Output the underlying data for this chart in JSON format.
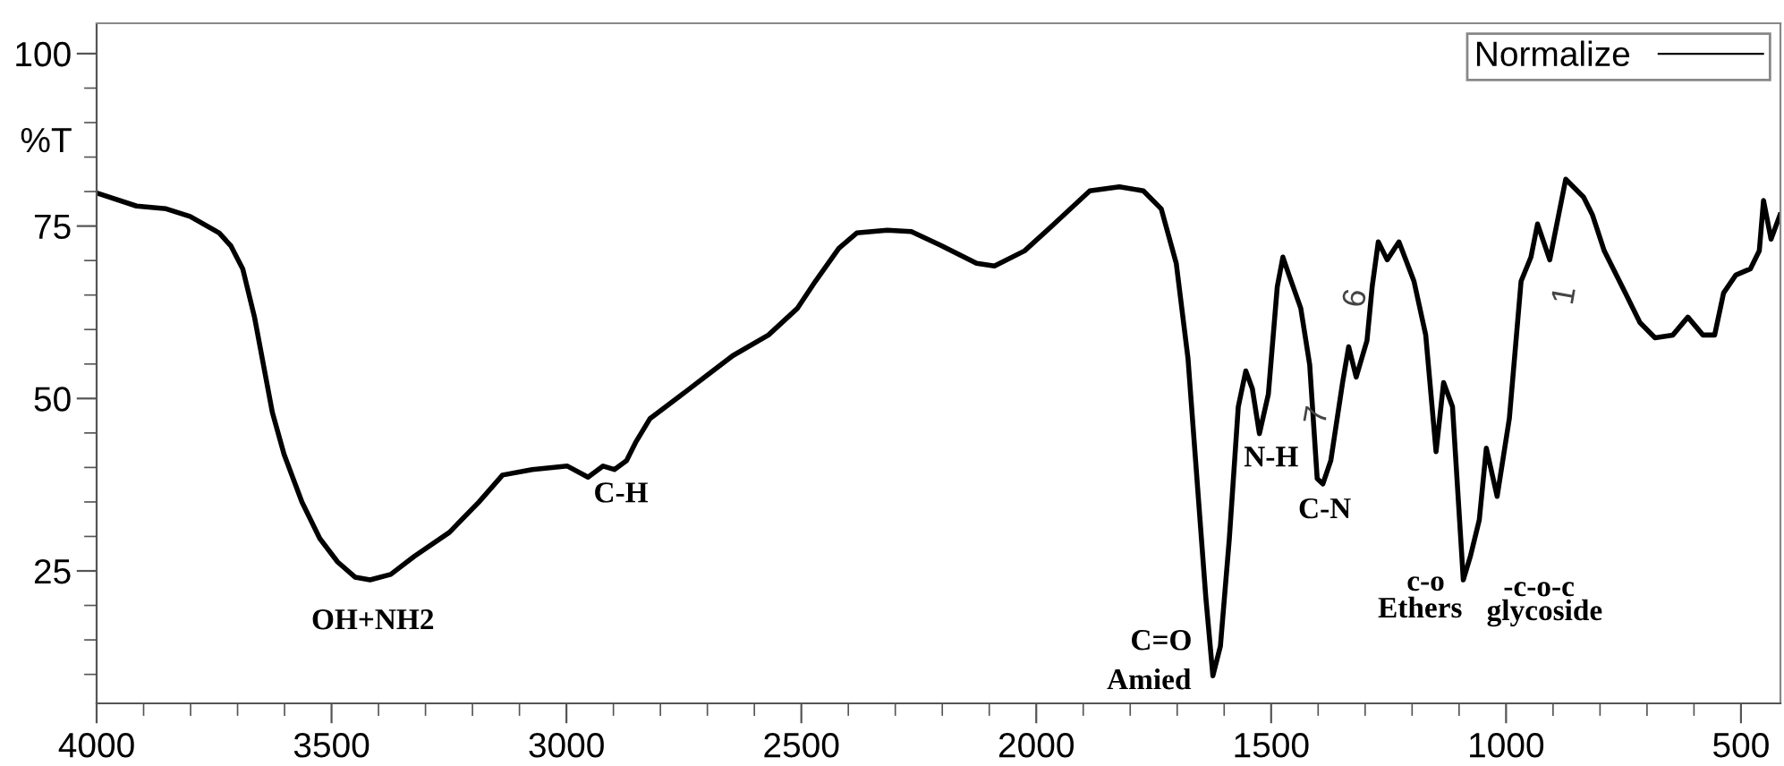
{
  "chart_data": {
    "type": "line",
    "ylabel": "%T",
    "legend": "top right",
    "grid": false,
    "marker": "none",
    "line_style": "solid",
    "xlim": [
      4000,
      416
    ],
    "ylim": [
      5.8,
      104.4
    ],
    "xticks": [
      4000,
      {
        "value": 3900,
        "label": null
      },
      {
        "value": 3800,
        "label": null
      },
      {
        "value": 3700,
        "label": null
      },
      {
        "value": 3600,
        "label": null
      },
      3500,
      {
        "value": 3400,
        "label": null
      },
      {
        "value": 3300,
        "label": null
      },
      {
        "value": 3200,
        "label": null
      },
      {
        "value": 3100,
        "label": null
      },
      3000,
      {
        "value": 2900,
        "label": null
      },
      {
        "value": 2800,
        "label": null
      },
      {
        "value": 2700,
        "label": null
      },
      {
        "value": 2600,
        "label": null
      },
      2500,
      {
        "value": 2400,
        "label": null
      },
      {
        "value": 2300,
        "label": null
      },
      {
        "value": 2200,
        "label": null
      },
      {
        "value": 2100,
        "label": null
      },
      2000,
      {
        "value": 1900,
        "label": null
      },
      {
        "value": 1800,
        "label": null
      },
      {
        "value": 1700,
        "label": null
      },
      {
        "value": 1600,
        "label": null
      },
      1500,
      {
        "value": 1400,
        "label": null
      },
      {
        "value": 1300,
        "label": null
      },
      {
        "value": 1200,
        "label": null
      },
      {
        "value": 1100,
        "label": null
      },
      1000,
      {
        "value": 900,
        "label": null
      },
      {
        "value": 800,
        "label": null
      },
      {
        "value": 700,
        "label": null
      },
      {
        "value": 600,
        "label": null
      },
      500
    ],
    "yticks": [
      {
        "value": 10,
        "label": null
      },
      {
        "value": 15,
        "label": null
      },
      {
        "value": 20,
        "label": null
      },
      25,
      {
        "value": 30,
        "label": null
      },
      {
        "value": 35,
        "label": null
      },
      {
        "value": 40,
        "label": null
      },
      {
        "value": 45,
        "label": null
      },
      50,
      {
        "value": 55,
        "label": null
      },
      {
        "value": 60,
        "label": null
      },
      {
        "value": 65,
        "label": null
      },
      {
        "value": 70,
        "label": null
      },
      75,
      {
        "value": 80,
        "label": null
      },
      {
        "value": 85,
        "label": null
      },
      {
        "value": 90,
        "label": null
      },
      {
        "value": 95,
        "label": null
      },
      100
    ],
    "series": [
      {
        "name": "Normalize",
        "color": "#000000",
        "x": [
          4000,
          3915,
          3852,
          3801,
          3739,
          3714,
          3689,
          3664,
          3645,
          3626,
          3601,
          3563,
          3525,
          3487,
          3450,
          3418,
          3374,
          3324,
          3249,
          3186,
          3136,
          3073,
          2998,
          2954,
          2922,
          2898,
          2872,
          2853,
          2822,
          2746,
          2696,
          2646,
          2570,
          2508,
          2470,
          2420,
          2382,
          2317,
          2266,
          2203,
          2127,
          2089,
          2025,
          1962,
          1886,
          1823,
          1772,
          1734,
          1702,
          1677,
          1658,
          1639,
          1624,
          1608,
          1589,
          1570,
          1554,
          1540,
          1525,
          1506,
          1487,
          1475,
          1462,
          1437,
          1418,
          1402,
          1390,
          1373,
          1348,
          1335,
          1319,
          1296,
          1285,
          1272,
          1253,
          1228,
          1196,
          1171,
          1149,
          1133,
          1114,
          1091,
          1076,
          1057,
          1042,
          1019,
          993,
          968,
          947,
          933,
          907,
          873,
          835,
          816,
          791,
          746,
          715,
          683,
          645,
          613,
          581,
          556,
          537,
          511,
          480,
          461,
          452,
          436,
          417
        ],
        "values": [
          79.8,
          77.9,
          77.5,
          76.4,
          74.0,
          72.1,
          68.8,
          61.8,
          54.9,
          48.0,
          41.9,
          35.0,
          29.7,
          26.3,
          24.1,
          23.7,
          24.5,
          27.1,
          30.6,
          35.0,
          38.9,
          39.7,
          40.2,
          38.6,
          40.2,
          39.7,
          41.0,
          43.6,
          47.1,
          51.0,
          53.6,
          56.2,
          59.2,
          63.1,
          67.0,
          71.8,
          74.0,
          74.4,
          74.2,
          72.2,
          69.6,
          69.2,
          71.4,
          75.3,
          80.1,
          80.7,
          80.1,
          77.5,
          69.6,
          55.8,
          38.4,
          21.1,
          9.8,
          14.1,
          29.7,
          48.8,
          54.0,
          51.4,
          44.9,
          50.6,
          66.2,
          70.5,
          67.9,
          63.1,
          54.9,
          38.4,
          37.6,
          41.0,
          52.3,
          57.5,
          53.1,
          58.4,
          66.2,
          72.7,
          70.1,
          72.7,
          67.0,
          59.2,
          42.3,
          52.3,
          48.8,
          23.7,
          27.1,
          32.4,
          42.8,
          35.8,
          47.1,
          67.0,
          70.5,
          75.3,
          70.1,
          81.8,
          79.2,
          76.6,
          71.4,
          65.3,
          61.0,
          58.8,
          59.2,
          61.8,
          59.2,
          59.2,
          65.3,
          67.9,
          68.8,
          71.4,
          78.7,
          73.1,
          76.6
        ]
      }
    ],
    "annotations": [
      "OH+NH2",
      "C-H",
      "C=O",
      "Amied",
      "N-H",
      "C-N",
      "7",
      "6",
      "1",
      "c-o",
      "Ethers",
      "-c-o-c",
      "glycoside"
    ]
  }
}
